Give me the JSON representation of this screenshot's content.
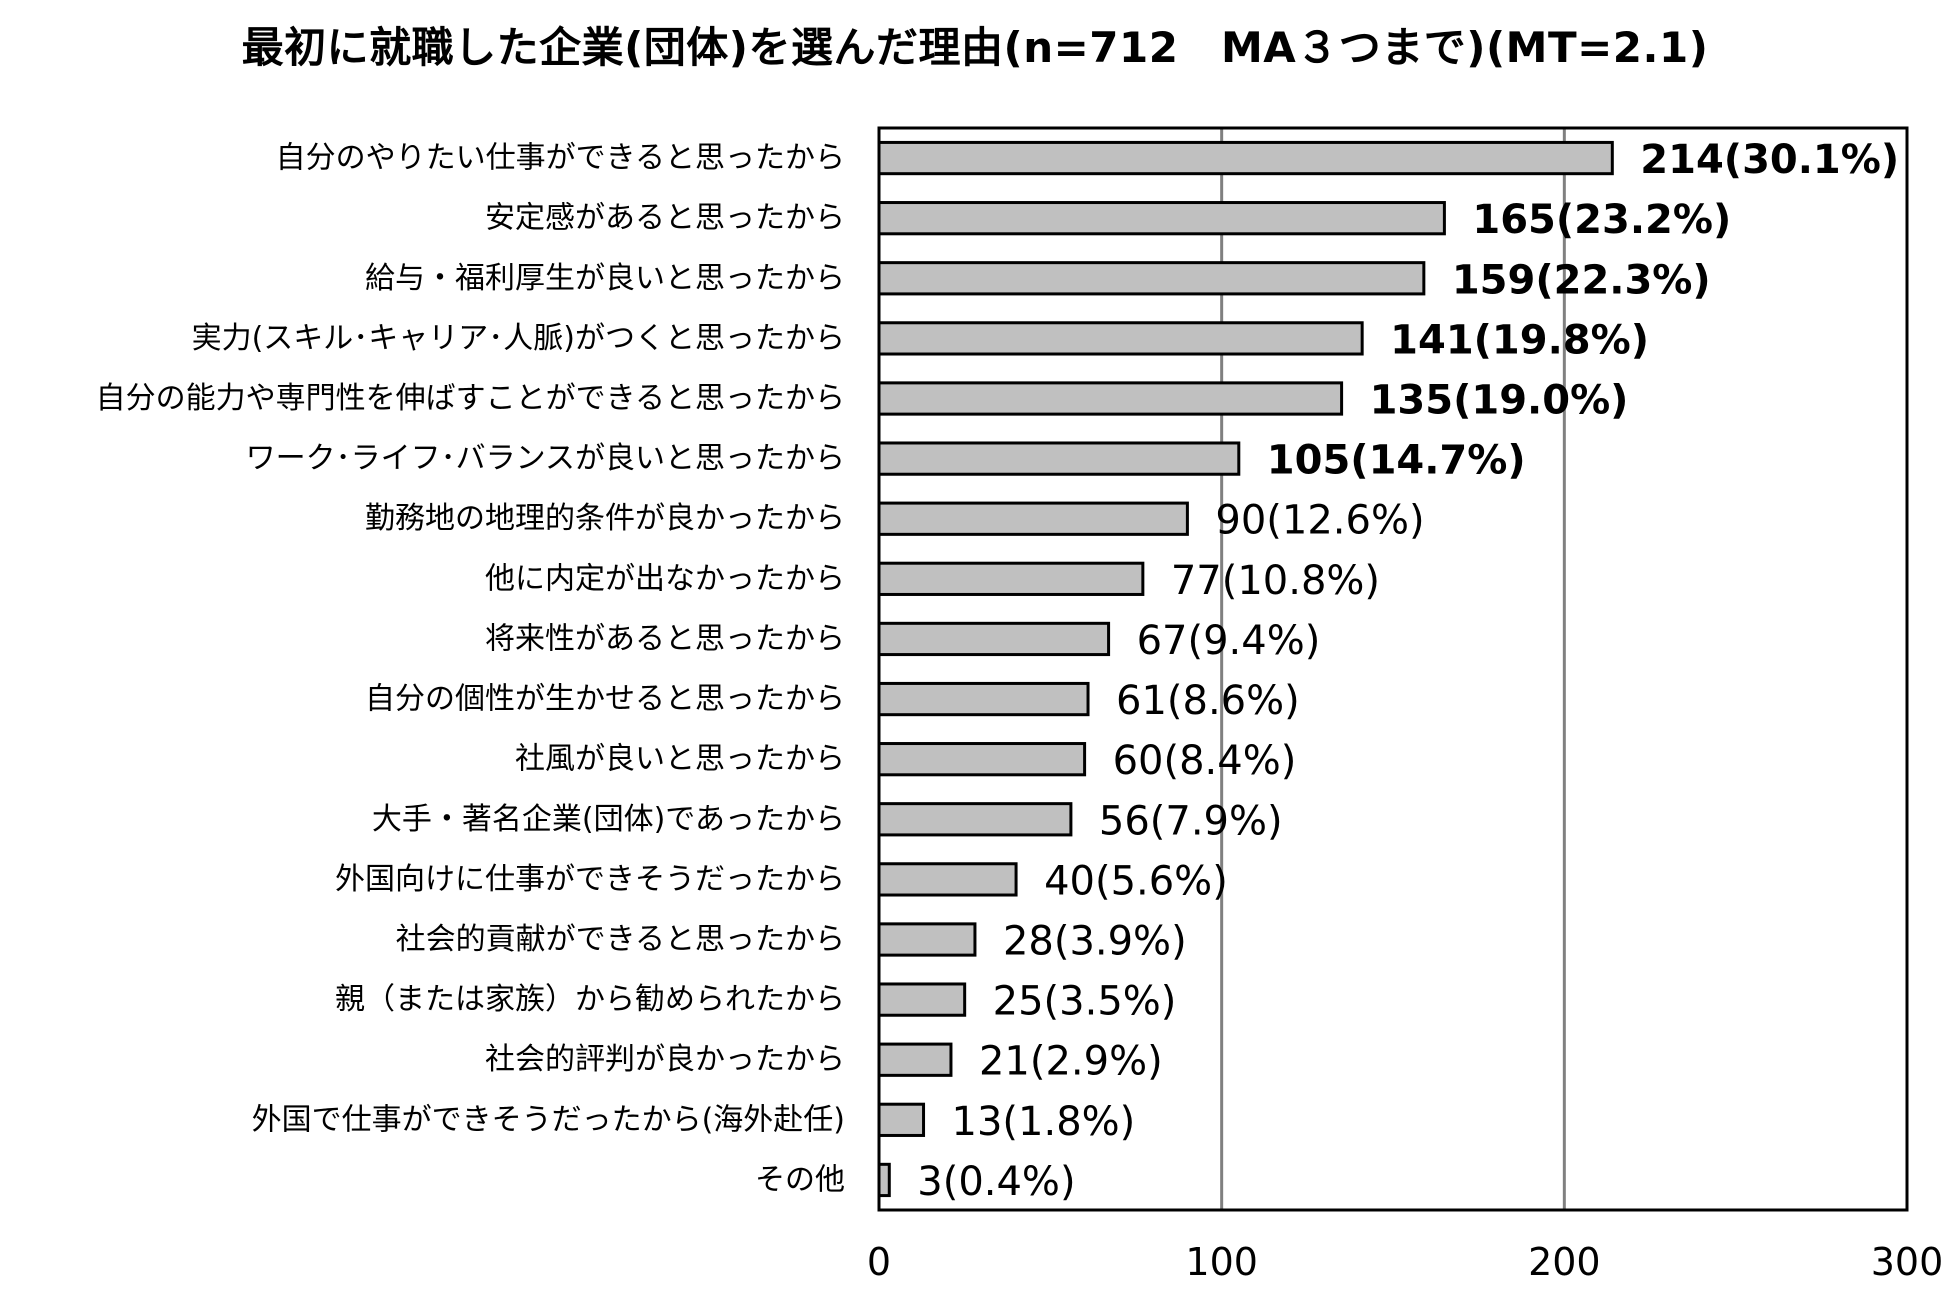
{
  "chart_data": {
    "type": "bar",
    "orientation": "horizontal",
    "title": "最初に就職した企業(団体)を選んだ理由(n=712　MA３つまで)(MT=2.1)",
    "categories": [
      "自分のやりたい仕事ができると思ったから",
      "安定感があると思ったから",
      "給与・福利厚生が良いと思ったから",
      "実力(スキル･キャリア･人脈)がつくと思ったから",
      "自分の能力や専門性を伸ばすことができると思ったから",
      "ワーク･ライフ･バランスが良いと思ったから",
      "勤務地の地理的条件が良かったから",
      "他に内定が出なかったから",
      "将来性があると思ったから",
      "自分の個性が生かせると思ったから",
      "社風が良いと思ったから",
      "大手・著名企業(団体)であったから",
      "外国向けに仕事ができそうだったから",
      "社会的貢献ができると思ったから",
      "親（または家族）から勧められたから",
      "社会的評判が良かったから",
      "外国で仕事ができそうだったから(海外赴任)",
      "その他"
    ],
    "values": [
      214,
      165,
      159,
      141,
      135,
      105,
      90,
      77,
      67,
      61,
      60,
      56,
      40,
      28,
      25,
      21,
      13,
      3
    ],
    "data_labels": [
      "214(30.1%)",
      "165(23.2%)",
      "159(22.3%)",
      "141(19.8%)",
      "135(19.0%)",
      "105(14.7%)",
      "90(12.6%)",
      "77(10.8%)",
      "67(9.4%)",
      "61(8.6%)",
      "60(8.4%)",
      "56(7.9%)",
      "40(5.6%)",
      "28(3.9%)",
      "25(3.5%)",
      "21(2.9%)",
      "13(1.8%)",
      "3(0.4%)"
    ],
    "bold_labels_top_n": 6,
    "xlim": [
      0,
      300
    ],
    "xticks": [
      0,
      100,
      200,
      300
    ],
    "xtick_labels": [
      "0",
      "100",
      "200",
      "300"
    ],
    "xlabel": "",
    "ylabel": "",
    "gridlines": "vertical",
    "bar_color": "#c0c0c0",
    "bar_edge_color": "#000000",
    "gridline_color": "#808080"
  }
}
